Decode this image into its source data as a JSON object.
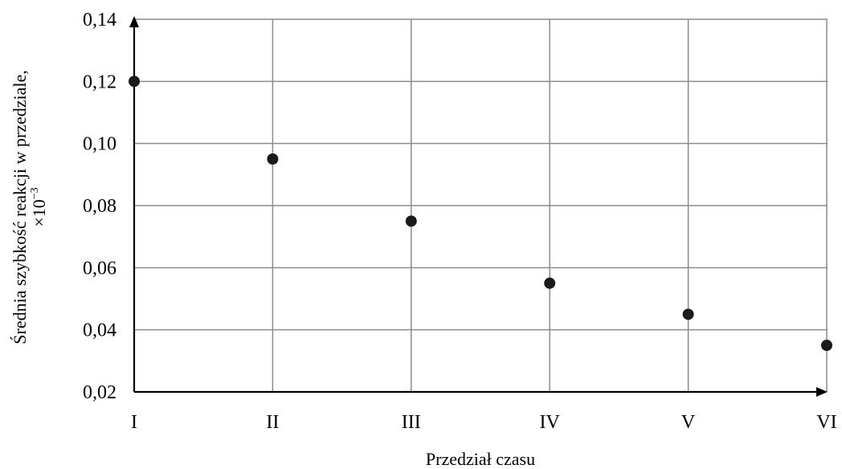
{
  "chart_data": {
    "type": "scatter",
    "categories": [
      "I",
      "II",
      "III",
      "IV",
      "V",
      "VI"
    ],
    "values": [
      0.12,
      0.095,
      0.075,
      0.055,
      0.045,
      0.035
    ],
    "ylim": [
      0.02,
      0.14
    ],
    "yticks": [
      "0,02",
      "0,04",
      "0,06",
      "0,08",
      "0,10",
      "0,12",
      "0,14"
    ],
    "ylabel_line1": "Średnia szybkość reakcji w przedziale,",
    "ylabel_line2": "×10",
    "ylabel_exp": "−3",
    "xlabel": "Przedział czasu",
    "grid": true,
    "legend": "none"
  }
}
